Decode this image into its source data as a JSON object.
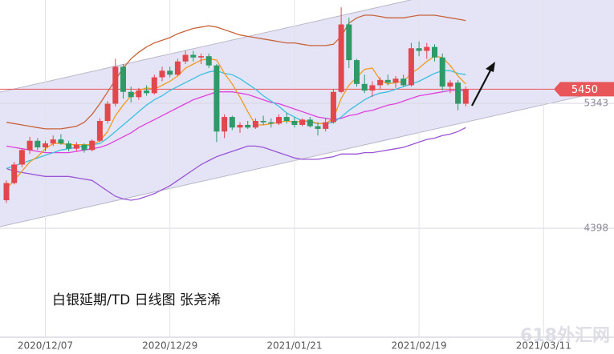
{
  "chart_data": {
    "type": "candlestick",
    "caption": "白银延期/TD 日线图 张尧浠",
    "watermark": "618外汇网",
    "categories": [
      null,
      null,
      null,
      null,
      null,
      "2020/12/07",
      null,
      null,
      null,
      null,
      null,
      null,
      null,
      null,
      null,
      null,
      null,
      null,
      null,
      null,
      null,
      "2020/12/29",
      null,
      null,
      null,
      null,
      null,
      null,
      null,
      null,
      null,
      null,
      null,
      null,
      null,
      null,
      null,
      "2021/01/21",
      null,
      null,
      null,
      null,
      null,
      null,
      null,
      null,
      null,
      null,
      null,
      null,
      null,
      null,
      null,
      "2021/02/19",
      null,
      null,
      null,
      null,
      null,
      null,
      null,
      null,
      null,
      null,
      null,
      null,
      null,
      null,
      null,
      "2021/03/11",
      null,
      null
    ],
    "open": [
      4610,
      4740,
      4880,
      4990,
      5060,
      5010,
      5040,
      5070,
      5040,
      5000,
      5030,
      4990,
      5060,
      5210,
      5340,
      5620,
      5430,
      5390,
      5440,
      5420,
      5540,
      5590,
      5560,
      5660,
      5710,
      5690,
      5700,
      5630,
      5130,
      5240,
      5160,
      5180,
      5160,
      5210,
      5200,
      5190,
      5240,
      5210,
      5180,
      5220,
      5170,
      5150,
      5200,
      5430,
      5940,
      5670,
      5490,
      5440,
      5480,
      5520,
      5500,
      5530,
      5480,
      5760,
      5740,
      5770,
      5690,
      5470,
      5500,
      5340,
      null,
      null,
      null,
      null,
      null,
      null,
      null,
      null,
      null,
      null,
      null,
      null
    ],
    "high": [
      4760,
      4900,
      5000,
      5090,
      5080,
      5060,
      5100,
      5110,
      5060,
      5050,
      5040,
      5070,
      5230,
      5360,
      5680,
      5640,
      5470,
      5460,
      5480,
      5560,
      5620,
      5620,
      5680,
      5740,
      5740,
      5720,
      5720,
      5640,
      5260,
      5250,
      5200,
      5210,
      5230,
      5250,
      5230,
      5260,
      5270,
      5240,
      5230,
      5240,
      5200,
      5230,
      5450,
      6070,
      5990,
      5680,
      5560,
      5510,
      5540,
      5560,
      5550,
      5560,
      5800,
      5810,
      5800,
      5790,
      5720,
      5520,
      5520,
      5470,
      null,
      null,
      null,
      null,
      null,
      null,
      null,
      null,
      null,
      null,
      null,
      null
    ],
    "low": [
      4590,
      4730,
      4860,
      4960,
      4990,
      4980,
      5020,
      5030,
      4980,
      4980,
      4970,
      4980,
      5050,
      5190,
      5320,
      5380,
      5350,
      5370,
      5400,
      5410,
      5510,
      5540,
      5550,
      5640,
      5660,
      5640,
      5610,
      5050,
      5080,
      5140,
      5120,
      5150,
      5150,
      5180,
      5160,
      5180,
      5190,
      5160,
      5170,
      5160,
      5100,
      5130,
      5190,
      5420,
      5610,
      5470,
      5420,
      5390,
      5450,
      5480,
      5460,
      5470,
      5470,
      5700,
      5680,
      5660,
      5440,
      5420,
      5290,
      5320,
      null,
      null,
      null,
      null,
      null,
      null,
      null,
      null,
      null,
      null,
      null,
      null
    ],
    "close": [
      4740,
      4880,
      4990,
      5060,
      5010,
      5040,
      5070,
      5040,
      5000,
      5030,
      4990,
      5060,
      5210,
      5340,
      5620,
      5430,
      5390,
      5440,
      5420,
      5540,
      5590,
      5560,
      5660,
      5710,
      5690,
      5700,
      5630,
      5130,
      5240,
      5160,
      5180,
      5160,
      5210,
      5200,
      5190,
      5240,
      5210,
      5180,
      5220,
      5170,
      5150,
      5200,
      5430,
      5940,
      5670,
      5490,
      5440,
      5480,
      5520,
      5500,
      5530,
      5480,
      5760,
      5740,
      5770,
      5690,
      5470,
      5500,
      5340,
      5450,
      null,
      null,
      null,
      null,
      null,
      null,
      null,
      null,
      null,
      null,
      null,
      null
    ],
    "up_color": "#e2474e",
    "down_color": "#2f9a68",
    "overlays": [
      {
        "color": "#c8643c",
        "values": [
          5200,
          5190,
          5180,
          5170,
          5160,
          5150,
          5150,
          5150,
          5160,
          5170,
          5200,
          5260,
          5340,
          5430,
          5520,
          5610,
          5680,
          5730,
          5770,
          5800,
          5820,
          5840,
          5870,
          5890,
          5910,
          5920,
          5930,
          5920,
          5900,
          5880,
          5860,
          5850,
          5840,
          5830,
          5820,
          5810,
          5800,
          5800,
          5790,
          5780,
          5780,
          5780,
          5790,
          5850,
          5950,
          5990,
          6010,
          6010,
          6000,
          5990,
          5990,
          5990,
          6000,
          6010,
          6010,
          6010,
          6000,
          5990,
          5980,
          5970,
          null,
          null,
          null,
          null,
          null,
          null,
          null,
          null,
          null,
          null,
          null,
          null
        ]
      },
      {
        "color": "#9a55d6",
        "values": [
          4850,
          4830,
          4820,
          4810,
          4800,
          4790,
          4790,
          4790,
          4790,
          4780,
          4770,
          4760,
          4720,
          4680,
          4640,
          4620,
          4610,
          4620,
          4640,
          4660,
          4690,
          4720,
          4760,
          4800,
          4840,
          4880,
          4910,
          4940,
          4960,
          4980,
          5000,
          5020,
          5020,
          5010,
          4990,
          4970,
          4950,
          4930,
          4920,
          4920,
          4920,
          4930,
          4940,
          4960,
          4960,
          4960,
          4970,
          4970,
          4980,
          4990,
          5000,
          5010,
          5030,
          5050,
          5070,
          5080,
          5100,
          5110,
          5130,
          5160,
          null,
          null,
          null,
          null,
          null,
          null,
          null,
          null,
          null,
          null,
          null,
          null
        ]
      },
      {
        "color": "#e040dc",
        "values": [
          5020,
          5010,
          5000,
          4990,
          4980,
          4970,
          4970,
          4970,
          4970,
          4980,
          4990,
          5000,
          5010,
          5030,
          5060,
          5090,
          5120,
          5160,
          5190,
          5220,
          5250,
          5280,
          5310,
          5340,
          5370,
          5390,
          5410,
          5430,
          5430,
          5430,
          5420,
          5410,
          5390,
          5370,
          5350,
          5340,
          5320,
          5300,
          5280,
          5260,
          5240,
          5230,
          5220,
          5230,
          5250,
          5260,
          5280,
          5290,
          5310,
          5330,
          5340,
          5360,
          5380,
          5400,
          5410,
          5420,
          5430,
          5440,
          5440,
          5440,
          null,
          null,
          null,
          null,
          null,
          null,
          null,
          null,
          null,
          null,
          null,
          null
        ]
      },
      {
        "color": "#3cc0e0",
        "values": [
          4850,
          4870,
          4890,
          4910,
          4930,
          4950,
          4970,
          4990,
          5000,
          5010,
          5020,
          5030,
          5040,
          5080,
          5130,
          5180,
          5230,
          5280,
          5330,
          5370,
          5400,
          5440,
          5470,
          5500,
          5530,
          5560,
          5580,
          5590,
          5570,
          5560,
          5530,
          5490,
          5450,
          5400,
          5360,
          5320,
          5270,
          5240,
          5210,
          5200,
          5190,
          5190,
          5200,
          5240,
          5290,
          5330,
          5370,
          5400,
          5420,
          5430,
          5450,
          5470,
          5490,
          5510,
          5540,
          5570,
          5590,
          5590,
          5570,
          5560,
          null,
          null,
          null,
          null,
          null,
          null,
          null,
          null,
          null,
          null,
          null,
          null
        ]
      },
      {
        "color": "#f29a1e",
        "values": [
          4700,
          4760,
          4830,
          4900,
          4940,
          5000,
          5040,
          5040,
          5030,
          5030,
          5030,
          5030,
          5060,
          5130,
          5250,
          5330,
          5400,
          5440,
          5460,
          5450,
          5480,
          5510,
          5550,
          5610,
          5640,
          5670,
          5680,
          5670,
          5570,
          5490,
          5390,
          5280,
          5180,
          5180,
          5190,
          5200,
          5210,
          5200,
          5210,
          5210,
          5190,
          5190,
          5230,
          5380,
          5480,
          5540,
          5600,
          5610,
          5520,
          5490,
          5500,
          5510,
          5570,
          5610,
          5660,
          5700,
          5690,
          5630,
          5550,
          5490,
          null,
          null,
          null,
          null,
          null,
          null,
          null,
          null,
          null,
          null,
          null,
          null
        ]
      }
    ],
    "ylim": [
      3580,
      6125
    ],
    "yticks": [
      4398,
      5343
    ],
    "last_price": 5450,
    "last_price_color": "#e8565a",
    "grid": true
  }
}
